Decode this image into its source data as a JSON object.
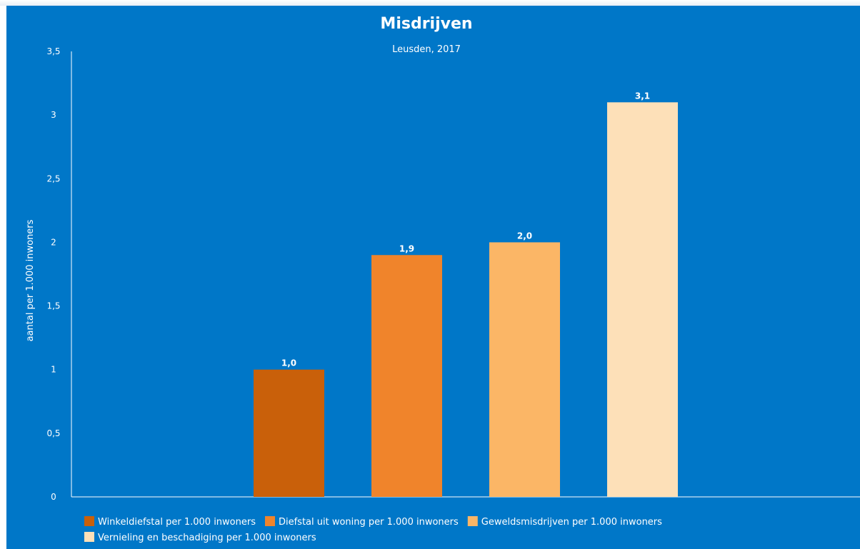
{
  "colors": {
    "background": "#0077c8",
    "axis": "#ffffff",
    "text": "#ffffff"
  },
  "chart_data": {
    "type": "bar",
    "title": "Misdrijven",
    "subtitle": "Leusden, 2017",
    "ylabel": "aantal per 1.000 inwoners",
    "xlabel": "",
    "ylim": [
      0,
      3.5
    ],
    "yticks": [
      {
        "value": 0,
        "label": "0"
      },
      {
        "value": 0.5,
        "label": "0,5"
      },
      {
        "value": 1,
        "label": "1"
      },
      {
        "value": 1.5,
        "label": "1,5"
      },
      {
        "value": 2,
        "label": "2"
      },
      {
        "value": 2.5,
        "label": "2,5"
      },
      {
        "value": 3,
        "label": "3"
      },
      {
        "value": 3.5,
        "label": "3,5"
      }
    ],
    "grid": false,
    "legend_position": "bottom-left",
    "series": [
      {
        "name": "Winkeldiefstal per 1.000 inwoners",
        "value": 1.0,
        "label": "1,0",
        "color": "#c9600a"
      },
      {
        "name": "Diefstal uit woning per 1.000 inwoners",
        "value": 1.9,
        "label": "1,9",
        "color": "#f0842b"
      },
      {
        "name": "Geweldsmisdrijven per 1.000 inwoners",
        "value": 2.0,
        "label": "2,0",
        "color": "#fbb666"
      },
      {
        "name": "Vernieling en beschadiging per 1.000 inwoners",
        "value": 3.1,
        "label": "3,1",
        "color": "#fde0b8"
      }
    ]
  }
}
